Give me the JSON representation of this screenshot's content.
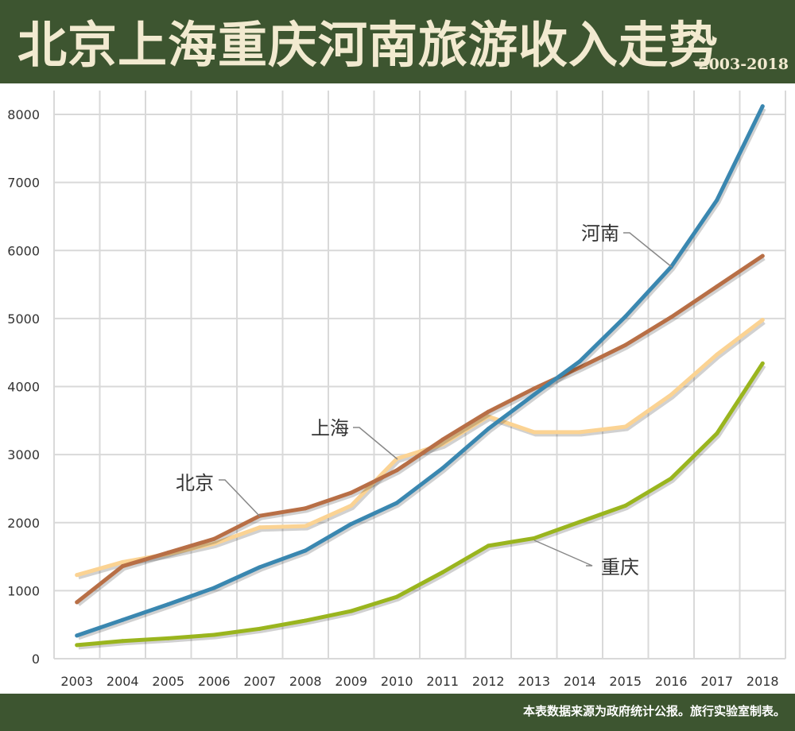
{
  "header": {
    "title": "北京上海重庆河南旅游收入走势",
    "years": "2003-2018"
  },
  "footer": {
    "note": "本表数据来源为政府统计公报。旅行实验室制表。"
  },
  "colors": {
    "background": "#3d5530",
    "title": "#f2ead0",
    "henan": "#3a87b0",
    "beijing": "#b86f46",
    "shanghai": "#fbd393",
    "chongqing": "#9ab51e",
    "grid": "#d9d9d9"
  },
  "chart_data": {
    "type": "line",
    "title": "北京上海重庆河南旅游收入走势",
    "xlabel": "",
    "ylabel": "",
    "categories": [
      "2003",
      "2004",
      "2005",
      "2006",
      "2007",
      "2008",
      "2009",
      "2010",
      "2011",
      "2012",
      "2013",
      "2014",
      "2015",
      "2016",
      "2017",
      "2018"
    ],
    "ylim": [
      0,
      8000
    ],
    "yticks": [
      0,
      1000,
      2000,
      3000,
      4000,
      5000,
      6000,
      7000,
      8000
    ],
    "grid": true,
    "legend": "direct labels",
    "series": [
      {
        "name": "河南",
        "color": "#3a87b0",
        "values": [
          340,
          570,
          800,
          1040,
          1345,
          1590,
          1980,
          2290,
          2800,
          3380,
          3880,
          4370,
          5030,
          5760,
          6740,
          8120
        ]
      },
      {
        "name": "北京",
        "color": "#b86f46",
        "values": [
          830,
          1360,
          1560,
          1760,
          2100,
          2210,
          2440,
          2770,
          3220,
          3630,
          3970,
          4280,
          4610,
          5020,
          5470,
          5920
        ]
      },
      {
        "name": "上海",
        "color": "#fbd393",
        "values": [
          1230,
          1420,
          1540,
          1690,
          1930,
          1950,
          2250,
          2940,
          3150,
          3560,
          3330,
          3330,
          3410,
          3880,
          4470,
          4980
        ]
      },
      {
        "name": "重庆",
        "color": "#9ab51e",
        "values": [
          200,
          260,
          300,
          350,
          440,
          560,
          700,
          910,
          1270,
          1660,
          1770,
          2010,
          2250,
          2650,
          3310,
          4340
        ]
      }
    ]
  }
}
